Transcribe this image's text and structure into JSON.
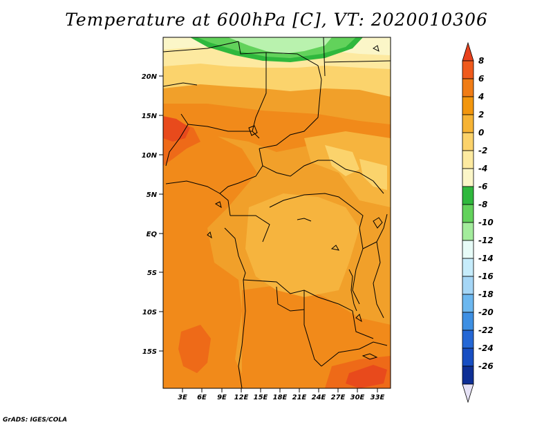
{
  "title": "Temperature at 600hPa [C], VT: 2020010306",
  "footer": "GrADS: IGES/COLA",
  "map": {
    "lat_labels": [
      "20N",
      "15N",
      "10N",
      "5N",
      "EQ",
      "5S",
      "10S",
      "15S"
    ],
    "lon_labels": [
      "3E",
      "6E",
      "9E",
      "12E",
      "15E",
      "18E",
      "21E",
      "24E",
      "27E",
      "30E",
      "33E"
    ]
  },
  "colorbar": {
    "labels": [
      "8",
      "6",
      "4",
      "2",
      "0",
      "-2",
      "-4",
      "-6",
      "-8",
      "-10",
      "-12",
      "-14",
      "-16",
      "-18",
      "-20",
      "-22",
      "-24",
      "-26"
    ],
    "colors": [
      "#e8411c",
      "#ef5a1c",
      "#f07c15",
      "#f2960d",
      "#f6b334",
      "#fbd26a",
      "#fdeaa0",
      "#fbf6c8",
      "#2fb83d",
      "#62d25b",
      "#a3ec9c",
      "#e7fbf7",
      "#c6ecfb",
      "#a5d6f6",
      "#6cb7ef",
      "#3d8fe3",
      "#2467d5",
      "#174ec2",
      "#0e2f95",
      "#e6e2f6"
    ]
  },
  "colors": {
    "map_base": "#f1a02a",
    "warm_orange": "#f18a1a",
    "deep_orange": "#ee6a18",
    "red_orange": "#e84a1c",
    "light_orange": "#f6b43e",
    "yellow": "#fbd36c",
    "pale_yellow": "#fde9a0",
    "cream": "#fbf6c8",
    "green_light": "#b9f2ae",
    "green_mid": "#62d25b",
    "green_dark": "#2fb83d"
  }
}
